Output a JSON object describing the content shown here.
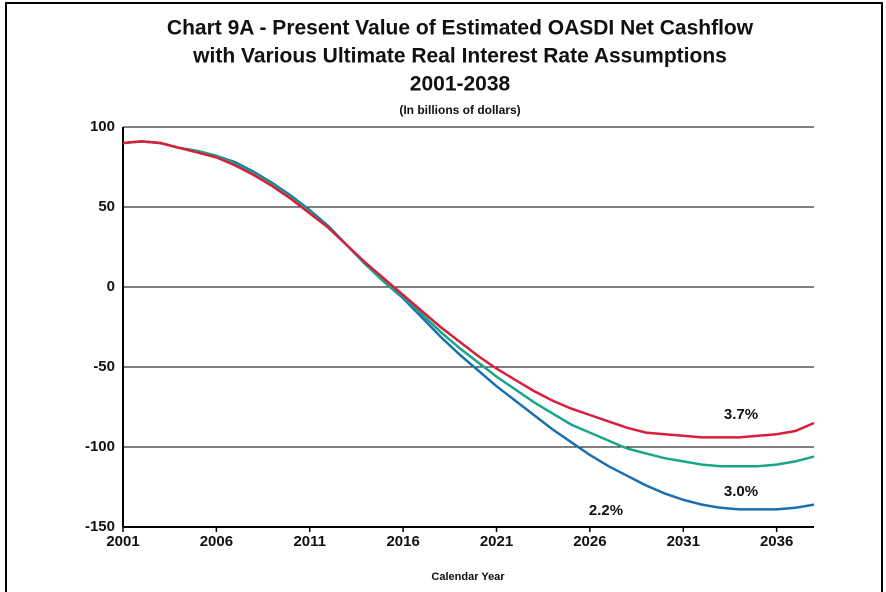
{
  "chart_data": {
    "type": "line",
    "title": [
      "Chart 9A - Present Value of Estimated OASDI Net Cashflow",
      "with Various Ultimate Real Interest Rate Assumptions",
      "2001-2038"
    ],
    "subtitle": "(In billions of dollars)",
    "x_label": "Calendar Year",
    "x": [
      2001,
      2002,
      2003,
      2004,
      2005,
      2006,
      2007,
      2008,
      2009,
      2010,
      2011,
      2012,
      2013,
      2014,
      2015,
      2016,
      2017,
      2018,
      2019,
      2020,
      2021,
      2022,
      2023,
      2024,
      2025,
      2026,
      2027,
      2028,
      2029,
      2030,
      2031,
      2032,
      2033,
      2034,
      2035,
      2036,
      2037,
      2038
    ],
    "xlim": [
      2001,
      2038
    ],
    "xticks": [
      2001,
      2006,
      2011,
      2016,
      2021,
      2026,
      2031,
      2036
    ],
    "ylim": [
      -150,
      100
    ],
    "yticks": [
      -150,
      -100,
      -50,
      0,
      50,
      100
    ],
    "grid": true,
    "series": [
      {
        "name": "2.2%",
        "color": "#1a6fb0",
        "values": [
          90,
          91,
          90,
          87,
          85,
          82,
          78,
          72,
          65,
          57,
          48,
          38,
          26,
          14,
          3,
          -7,
          -19,
          -31,
          -42,
          -52,
          -62,
          -71,
          -80,
          -89,
          -97,
          -105,
          -112,
          -118,
          -124,
          -129,
          -133,
          -136,
          -138,
          -139,
          -139,
          -139,
          -138,
          -136
        ]
      },
      {
        "name": "3.0%",
        "color": "#19a58a",
        "values": [
          90,
          91,
          90,
          87,
          85,
          82,
          77,
          71,
          64,
          56,
          47,
          37,
          26,
          14,
          3,
          -6,
          -17,
          -28,
          -38,
          -47,
          -56,
          -64,
          -72,
          -79,
          -86,
          -91,
          -96,
          -101,
          -104,
          -107,
          -109,
          -111,
          -112,
          -112,
          -112,
          -111,
          -109,
          -106
        ]
      },
      {
        "name": "3.7%",
        "color": "#d81f3c",
        "values": [
          90,
          91,
          90,
          87,
          84,
          81,
          76,
          70,
          63,
          55,
          46,
          37,
          26,
          15,
          5,
          -5,
          -15,
          -25,
          -34,
          -43,
          -51,
          -58,
          -65,
          -71,
          -76,
          -80,
          -84,
          -88,
          -91,
          -92,
          -93,
          -94,
          -94,
          -94,
          -93,
          -92,
          -90,
          -85
        ]
      }
    ]
  }
}
